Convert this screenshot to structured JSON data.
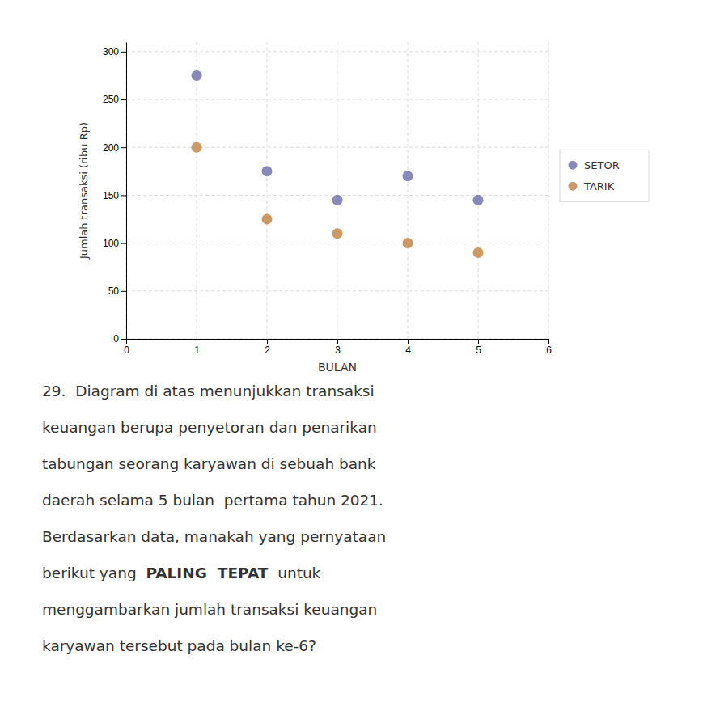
{
  "chart_data": {
    "type": "scatter",
    "xlabel": "BULAN",
    "ylabel": "Jumlah transaksi (ribu Rp)",
    "x": [
      1,
      2,
      3,
      4,
      5
    ],
    "series": [
      {
        "name": "SETOR",
        "color": "#8888bb",
        "values": [
          275,
          175,
          145,
          170,
          145
        ]
      },
      {
        "name": "TARIK",
        "color": "#cc9966",
        "values": [
          200,
          125,
          110,
          100,
          90
        ]
      }
    ],
    "xlim": [
      0,
      6
    ],
    "xticks": [
      0,
      1,
      2,
      3,
      4,
      5,
      6
    ],
    "ylim": [
      0,
      310
    ],
    "yticks": [
      0,
      50,
      100,
      150,
      200,
      250,
      300
    ],
    "grid": true,
    "legend": "right",
    "annotations": [
      "29.  Diagram di atas menunjukkan transaksi",
      "keuangan berupa penyetoran dan penarikan",
      "tabungan seorang karyawan di sebuah bank",
      "daerah selama 5 bulan  pertama tahun 2021.",
      "Berdasarkan data, manakah yang pernyataan",
      "berikut yang  PALING  TEPAT  untuk",
      "menggambarkan jumlah transaksi keuangan",
      "karyawan tersebut pada bulan ke-6?"
    ]
  }
}
